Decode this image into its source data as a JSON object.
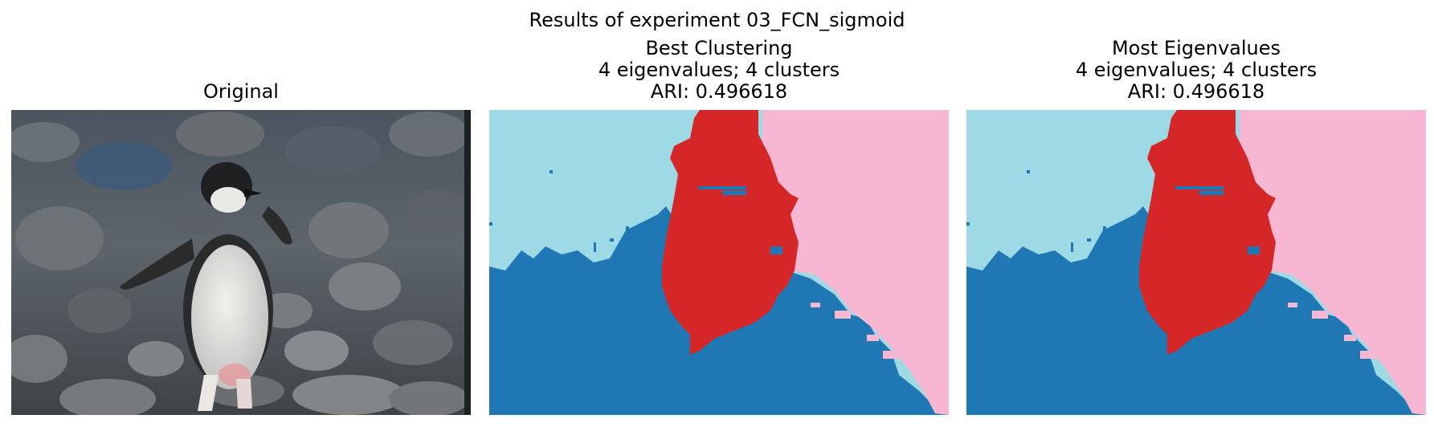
{
  "figure": {
    "title": "Results of experiment 03_FCN_sigmoid"
  },
  "panels": [
    {
      "title": "Original",
      "kind": "photo",
      "image_desc": "penguin"
    },
    {
      "title": "Best Clustering\n4 eigenvalues; 4 clusters\nARI: 0.496618",
      "kind": "segmentation"
    },
    {
      "title": "Most Eigenvalues\n4 eigenvalues; 4 clusters\nARI: 0.496618",
      "kind": "segmentation"
    }
  ],
  "colors": {
    "cluster_light_blue": "#9edae5",
    "cluster_red": "#d62728",
    "cluster_pink": "#f7b6d2",
    "cluster_dark_blue": "#1f77b4"
  }
}
